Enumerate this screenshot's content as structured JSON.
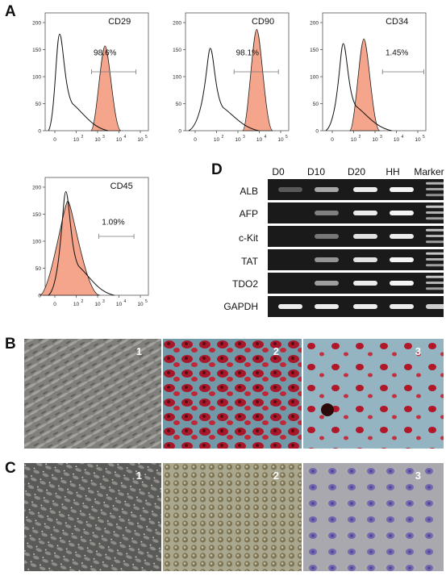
{
  "panels": {
    "A": "A",
    "B": "B",
    "C": "C",
    "D": "D"
  },
  "histograms": [
    {
      "name": "CD29",
      "percent": "98.6%",
      "y_ticks": [
        "0",
        "50",
        "100",
        "150",
        "200"
      ],
      "x_ticks": [
        "0",
        "10",
        "10",
        "10",
        "10"
      ],
      "x_exps": [
        "",
        "2",
        "3",
        "4",
        "5"
      ]
    },
    {
      "name": "CD90",
      "percent": "98.1%",
      "y_ticks": [
        "0",
        "50",
        "100",
        "150",
        "200"
      ],
      "x_ticks": [
        "0",
        "10",
        "10",
        "10",
        "10"
      ],
      "x_exps": [
        "",
        "2",
        "3",
        "4",
        "5"
      ]
    },
    {
      "name": "CD34",
      "percent": "1.45%",
      "y_ticks": [
        "0",
        "50",
        "100",
        "150",
        "200"
      ],
      "x_ticks": [
        "0",
        "10",
        "10",
        "10",
        "10"
      ],
      "x_exps": [
        "",
        "2",
        "3",
        "4",
        "5"
      ]
    },
    {
      "name": "CD45",
      "percent": "1.09%",
      "y_ticks": [
        "0",
        "50",
        "100",
        "150",
        "200"
      ],
      "x_ticks": [
        "0",
        "10",
        "10",
        "10",
        "10"
      ],
      "x_exps": [
        "",
        "2",
        "3",
        "4",
        "5"
      ]
    }
  ],
  "gel": {
    "lanes": [
      "D0",
      "D10",
      "D20",
      "HH",
      "Marker"
    ],
    "genes": [
      "ALB",
      "AFP",
      "c-Kit",
      "TAT",
      "TDO2",
      "GAPDH"
    ],
    "band_intensity": [
      [
        0.15,
        0.55,
        0.9,
        0.95,
        0.7
      ],
      [
        0.0,
        0.35,
        0.9,
        0.95,
        0.8
      ],
      [
        0.0,
        0.3,
        0.85,
        0.9,
        0.8
      ],
      [
        0.0,
        0.45,
        0.85,
        0.95,
        0.8
      ],
      [
        0.0,
        0.5,
        0.9,
        0.95,
        0.8
      ],
      [
        0.9,
        0.9,
        0.9,
        0.9,
        0.75
      ]
    ]
  },
  "micrographs": {
    "B": [
      "1",
      "2",
      "3"
    ],
    "C": [
      "1",
      "2",
      "3"
    ]
  },
  "colors": {
    "histogram_fill": "#f4a58c",
    "gel_background": "#1a1a1a",
    "stain_red": "#b0182a",
    "stain_blue": "#6a96a8",
    "stain_purple": "#7468b0"
  }
}
